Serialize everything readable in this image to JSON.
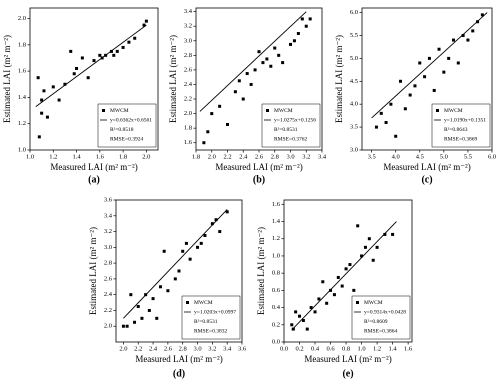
{
  "chart_data": [
    {
      "type": "scatter",
      "panel_label": "(a)",
      "x_label": "Measured LAI (m² m⁻²)",
      "y_label": "Estimated LAI (m² m⁻²)",
      "xlim": [
        1.0,
        2.1
      ],
      "ylim": [
        1.0,
        2.08
      ],
      "xticks": [
        {
          "value": 1.0,
          "label": "1.0"
        },
        1.2,
        1.4,
        1.6,
        1.8,
        {
          "value": 2.0,
          "label": "2.0"
        }
      ],
      "yticks": [
        {
          "value": 1.0,
          "label": "1.0"
        },
        1.2,
        1.4,
        1.6,
        1.8,
        {
          "value": 2.0,
          "label": "2.0"
        }
      ],
      "series": [
        {
          "name": "MWCM",
          "color": "#000000",
          "x": [
            1.07,
            1.08,
            1.1,
            1.1,
            1.12,
            1.15,
            1.2,
            1.25,
            1.3,
            1.35,
            1.38,
            1.4,
            1.45,
            1.5,
            1.55,
            1.6,
            1.62,
            1.65,
            1.7,
            1.72,
            1.75,
            1.8,
            1.85,
            1.9,
            1.98,
            2.0
          ],
          "values": [
            1.55,
            1.1,
            1.28,
            1.38,
            1.45,
            1.25,
            1.48,
            1.38,
            1.5,
            1.75,
            1.58,
            1.62,
            1.7,
            1.55,
            1.68,
            1.72,
            1.7,
            1.72,
            1.75,
            1.72,
            1.75,
            1.78,
            1.82,
            1.85,
            1.95,
            1.98
          ]
        }
      ],
      "fit_line": {
        "x": [
          1.05,
          2.0
        ],
        "y": [
          1.33,
          1.95
        ]
      },
      "annotations": [
        "y=0.6362x+0.6561",
        "R²=0.8518",
        "RMSE=0.3924"
      ]
    },
    {
      "type": "scatter",
      "panel_label": "(b)",
      "x_label": "Measured LAI (m² m⁻²)",
      "y_label": "Estimated LAI (m² m⁻²)",
      "xlim": [
        1.8,
        3.4
      ],
      "ylim": [
        1.5,
        3.45
      ],
      "xticks": [
        1.8,
        {
          "value": 2.0,
          "label": "2.0"
        },
        2.2,
        2.4,
        2.6,
        2.8,
        {
          "value": 3.0,
          "label": "3.0"
        },
        3.2,
        3.4
      ],
      "yticks": [
        1.6,
        1.8,
        {
          "value": 2.0,
          "label": "2.0"
        },
        2.2,
        2.4,
        2.6,
        2.8,
        {
          "value": 3.0,
          "label": "3.0"
        },
        3.2,
        3.4
      ],
      "series": [
        {
          "name": "MWCM",
          "color": "#000000",
          "x": [
            1.9,
            1.95,
            2.0,
            2.1,
            2.2,
            2.3,
            2.35,
            2.4,
            2.45,
            2.5,
            2.55,
            2.6,
            2.65,
            2.7,
            2.75,
            2.8,
            2.85,
            2.9,
            3.0,
            3.05,
            3.1,
            3.15,
            3.2,
            3.25
          ],
          "values": [
            1.6,
            1.75,
            2.0,
            2.1,
            1.85,
            2.3,
            2.45,
            2.2,
            2.55,
            2.4,
            2.6,
            2.85,
            2.7,
            2.75,
            2.65,
            2.9,
            2.8,
            2.7,
            2.95,
            3.0,
            3.1,
            3.3,
            3.2,
            3.3
          ]
        }
      ],
      "fit_line": {
        "x": [
          1.85,
          3.2
        ],
        "y": [
          2.03,
          3.4
        ]
      },
      "annotations": [
        "y=1.0275x+0.1256",
        "R²=0.8531",
        "RMSE=0.3762"
      ]
    },
    {
      "type": "scatter",
      "panel_label": "(c)",
      "x_label": "Measured LAI (m² m⁻²)",
      "y_label": "Estimated LAI (m² m⁻²)",
      "xlim": [
        3.3,
        6.0
      ],
      "ylim": [
        3.0,
        6.1
      ],
      "xticks": [
        3.5,
        {
          "value": 4.0,
          "label": "4.0"
        },
        4.5,
        {
          "value": 5.0,
          "label": "5.0"
        },
        5.5,
        {
          "value": 6.0,
          "label": "6.0"
        }
      ],
      "yticks": [
        {
          "value": 3.0,
          "label": "3.0"
        },
        3.5,
        {
          "value": 4.0,
          "label": "4.0"
        },
        4.5,
        {
          "value": 5.0,
          "label": "5.0"
        },
        5.5,
        {
          "value": 6.0,
          "label": "6.0"
        }
      ],
      "series": [
        {
          "name": "MWCM",
          "color": "#000000",
          "x": [
            3.6,
            3.7,
            3.8,
            3.9,
            4.0,
            4.1,
            4.2,
            4.3,
            4.4,
            4.5,
            4.6,
            4.7,
            4.8,
            4.9,
            5.0,
            5.1,
            5.2,
            5.3,
            5.4,
            5.5,
            5.6,
            5.7,
            5.8
          ],
          "values": [
            3.5,
            3.8,
            3.6,
            4.0,
            3.3,
            4.5,
            3.9,
            4.2,
            4.4,
            4.9,
            4.6,
            5.0,
            4.3,
            5.2,
            4.7,
            5.0,
            5.4,
            4.9,
            5.5,
            5.4,
            5.6,
            5.8,
            5.95
          ]
        }
      ],
      "fit_line": {
        "x": [
          3.5,
          5.9
        ],
        "y": [
          3.7,
          6.0
        ]
      },
      "annotations": [
        "y=1.0190x+0.1351",
        "R²=0.8643",
        "RMSE=0.3869"
      ]
    },
    {
      "type": "scatter",
      "panel_label": "(d)",
      "x_label": "Measured LAI (m² m⁻²)",
      "y_label": "Estimated LAI (m² m⁻²)",
      "xlim": [
        1.9,
        3.6
      ],
      "ylim": [
        1.8,
        3.6
      ],
      "xticks": [
        {
          "value": 2.0,
          "label": "2.0"
        },
        2.2,
        2.4,
        2.6,
        2.8,
        {
          "value": 3.0,
          "label": "3.0"
        },
        3.2,
        3.4,
        3.6
      ],
      "yticks": [
        {
          "value": 2.0,
          "label": "2.0"
        },
        2.2,
        2.4,
        2.6,
        2.8,
        {
          "value": 3.0,
          "label": "3.0"
        },
        3.2,
        3.4,
        3.6
      ],
      "series": [
        {
          "name": "MWCM",
          "color": "#000000",
          "x": [
            2.0,
            2.05,
            2.1,
            2.15,
            2.2,
            2.25,
            2.3,
            2.35,
            2.4,
            2.45,
            2.5,
            2.55,
            2.6,
            2.7,
            2.75,
            2.8,
            2.85,
            2.9,
            3.0,
            3.05,
            3.1,
            3.2,
            3.25,
            3.3,
            3.4
          ],
          "values": [
            2.0,
            2.0,
            2.4,
            2.05,
            2.25,
            2.1,
            2.4,
            2.2,
            2.35,
            2.1,
            2.5,
            2.95,
            2.45,
            2.6,
            2.7,
            2.95,
            3.05,
            2.85,
            3.0,
            3.05,
            3.15,
            3.3,
            3.35,
            3.2,
            3.45
          ]
        }
      ],
      "fit_line": {
        "x": [
          2.0,
          3.4
        ],
        "y": [
          2.1,
          3.48
        ]
      },
      "annotations": [
        "y=1.0203x+0.0997",
        "R²=0.8531",
        "RMSE=0.3832"
      ]
    },
    {
      "type": "scatter",
      "panel_label": "(e)",
      "x_label": "Measured LAI (m² m⁻²)",
      "y_label": "Estimated LAI (m² m⁻²)",
      "xlim": [
        0.0,
        1.65
      ],
      "ylim": [
        0.0,
        1.65
      ],
      "xticks": [
        {
          "value": 0.0,
          "label": "0.0"
        },
        0.2,
        0.4,
        0.6,
        0.8,
        {
          "value": 1.0,
          "label": "1.0"
        },
        1.2,
        1.4,
        1.6
      ],
      "yticks": [
        {
          "value": 0.0,
          "label": "0.0"
        },
        0.2,
        0.4,
        0.6,
        0.8,
        {
          "value": 1.0,
          "label": "1.0"
        },
        1.2,
        1.4,
        1.6
      ],
      "series": [
        {
          "name": "MWCM",
          "color": "#000000",
          "x": [
            0.1,
            0.12,
            0.15,
            0.2,
            0.25,
            0.3,
            0.35,
            0.4,
            0.45,
            0.5,
            0.55,
            0.6,
            0.65,
            0.7,
            0.75,
            0.8,
            0.85,
            0.9,
            0.95,
            1.0,
            1.05,
            1.1,
            1.15,
            1.2,
            1.3,
            1.4
          ],
          "values": [
            0.2,
            0.15,
            0.35,
            0.3,
            0.25,
            0.15,
            0.4,
            0.35,
            0.5,
            0.7,
            0.45,
            0.6,
            0.55,
            0.75,
            0.65,
            0.85,
            0.9,
            0.6,
            1.35,
            1.0,
            1.1,
            1.2,
            0.95,
            1.1,
            1.25,
            1.25
          ]
        }
      ],
      "fit_line": {
        "x": [
          0.1,
          1.45
        ],
        "y": [
          0.14,
          1.4
        ]
      },
      "annotations": [
        "y=0.9314x+0.0428",
        "R²=0.8609",
        "RMSE=0.3864"
      ]
    }
  ]
}
